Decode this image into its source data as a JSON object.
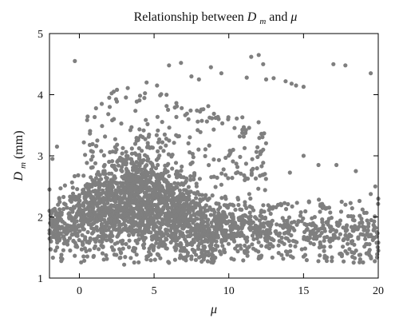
{
  "chart_data": {
    "type": "scatter",
    "title": {
      "prefix": "Relationship between ",
      "sym1": "D",
      "sym1_sub": "m",
      "middle": " and ",
      "sym2": "μ"
    },
    "xlabel": "μ",
    "ylabel": {
      "sym": "D",
      "sub": "m",
      "unit": " (mm)"
    },
    "xlim": [
      -2,
      20
    ],
    "ylim": [
      1,
      5
    ],
    "x_ticks": [
      0,
      5,
      10,
      15,
      20
    ],
    "y_ticks": [
      1,
      2,
      3,
      4,
      5
    ],
    "grid": false,
    "marker_color": "#7f7f7f",
    "series": [
      {
        "points": [
          [
            -0.3,
            4.55
          ],
          [
            17,
            4.5
          ],
          [
            17.8,
            4.48
          ],
          [
            19.5,
            4.35
          ],
          [
            12,
            4.65
          ],
          [
            11.5,
            4.62
          ],
          [
            12.3,
            4.5
          ],
          [
            11.2,
            4.28
          ],
          [
            12.5,
            4.25
          ],
          [
            13,
            4.27
          ],
          [
            13.8,
            4.22
          ],
          [
            14.5,
            4.15
          ],
          [
            14.2,
            4.18
          ],
          [
            15,
            4.13
          ],
          [
            6.8,
            4.52
          ],
          [
            6,
            4.48
          ],
          [
            8.8,
            4.45
          ],
          [
            9.5,
            4.35
          ],
          [
            7.5,
            4.3
          ],
          [
            8,
            4.25
          ],
          [
            4.5,
            4.2
          ],
          [
            5.2,
            4.15
          ],
          [
            2.3,
            4.05
          ],
          [
            2,
            3.95
          ],
          [
            1.5,
            3.85
          ],
          [
            1.2,
            3.25
          ],
          [
            0.3,
            3.22
          ],
          [
            -1.5,
            3.15
          ],
          [
            -1.8,
            2.95
          ],
          [
            15,
            3.0
          ],
          [
            16,
            2.85
          ],
          [
            17.2,
            2.85
          ],
          [
            18.5,
            2.75
          ],
          [
            19.8,
            2.5
          ],
          [
            20,
            2.3
          ],
          [
            19.9,
            1.75
          ],
          [
            20,
            1.45
          ],
          [
            19.5,
            1.35
          ],
          [
            18.8,
            1.38
          ],
          [
            17.5,
            1.4
          ],
          [
            -2,
            2.45
          ],
          [
            -2,
            2.1
          ],
          [
            -1.9,
            1.6
          ],
          [
            -1.6,
            1.45
          ],
          [
            -1.2,
            1.38
          ],
          [
            3,
            1.22
          ],
          [
            6,
            1.25
          ],
          [
            9,
            1.28
          ],
          [
            12,
            1.32
          ],
          [
            15,
            1.35
          ]
        ]
      }
    ]
  }
}
